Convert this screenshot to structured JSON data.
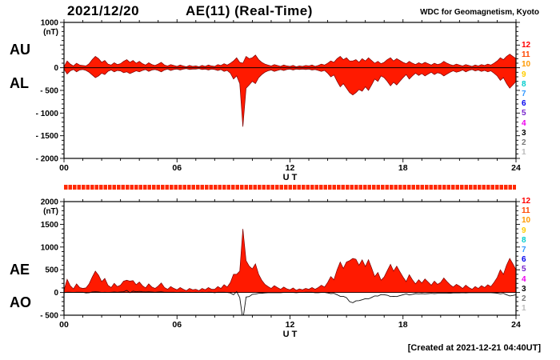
{
  "header": {
    "date": "2021/12/20",
    "title": "AE(11) (Real-Time)",
    "org": "WDC for Geomagnetism, Kyoto"
  },
  "footer": {
    "created": "[Created at 2021-12-21 04:40UT]"
  },
  "legend": {
    "entries": [
      {
        "label": "12",
        "color": "#ff0000"
      },
      {
        "label": "11",
        "color": "#ff4400"
      },
      {
        "label": "10",
        "color": "#ff9900"
      },
      {
        "label": "9",
        "color": "#ffcc00"
      },
      {
        "label": "8",
        "color": "#00cccc"
      },
      {
        "label": "7",
        "color": "#3399ff"
      },
      {
        "label": "6",
        "color": "#0000ee"
      },
      {
        "label": "5",
        "color": "#7722cc"
      },
      {
        "label": "4",
        "color": "#ee00ee"
      },
      {
        "label": "3",
        "color": "#000000"
      },
      {
        "label": "2",
        "color": "#777777"
      },
      {
        "label": "1",
        "color": "#bbbbbb"
      }
    ]
  },
  "availability_bar": {
    "color": "#ff2a00"
  },
  "chart_data": [
    {
      "type": "area",
      "panel": "top",
      "unit_label": "(nT)",
      "xlabel": "U T",
      "ylim": [
        -2000,
        1000
      ],
      "yticks": [
        1000,
        500,
        0,
        -500,
        -1000,
        -1500,
        -2000
      ],
      "ytick_labels": [
        "1000",
        "",
        "0",
        "- 500",
        "- 1000",
        "- 1500",
        "- 2000"
      ],
      "xticks": [
        0,
        6,
        12,
        18,
        24
      ],
      "xtick_labels": [
        "00",
        "06",
        "12",
        "18",
        "24"
      ],
      "x_hours_start": 0,
      "x_hours_end": 24,
      "x_step_minutes": 10,
      "fill_color": "#ff1a00",
      "series": [
        {
          "name": "AU",
          "display": "area",
          "values": [
            20,
            150,
            80,
            40,
            100,
            60,
            50,
            40,
            90,
            180,
            250,
            200,
            120,
            160,
            80,
            60,
            110,
            70,
            90,
            140,
            180,
            120,
            160,
            100,
            140,
            90,
            60,
            110,
            70,
            50,
            80,
            120,
            60,
            40,
            70,
            50,
            30,
            60,
            40,
            20,
            50,
            30,
            40,
            20,
            50,
            30,
            60,
            40,
            30,
            70,
            50,
            90,
            60,
            100,
            150,
            220,
            120,
            100,
            250,
            200,
            220,
            280,
            180,
            120,
            80,
            60,
            40,
            70,
            50,
            30,
            60,
            40,
            30,
            50,
            20,
            40,
            30,
            50,
            40,
            60,
            30,
            50,
            80,
            60,
            100,
            150,
            120,
            200,
            250,
            180,
            220,
            150,
            150,
            180,
            120,
            200,
            150,
            220,
            160,
            100,
            140,
            90,
            120,
            180,
            220,
            150,
            200,
            160,
            120,
            90,
            140,
            100,
            70,
            110,
            80,
            120,
            90,
            60,
            100,
            70,
            90,
            140,
            100,
            70,
            50,
            80,
            60,
            40,
            70,
            50,
            30,
            60,
            40,
            70,
            50,
            80,
            60,
            100,
            150,
            220,
            180,
            250,
            300,
            250,
            200
          ]
        },
        {
          "name": "AL",
          "display": "area",
          "values": [
            -30,
            -140,
            -70,
            -40,
            -90,
            -50,
            -40,
            -60,
            -100,
            -160,
            -220,
            -180,
            -120,
            -150,
            -80,
            -50,
            -90,
            -60,
            -70,
            -110,
            -90,
            -130,
            -100,
            -70,
            -90,
            -60,
            -40,
            -80,
            -50,
            -40,
            -60,
            -90,
            -50,
            -30,
            -60,
            -40,
            -30,
            -50,
            -30,
            -20,
            -40,
            -30,
            -30,
            -20,
            -40,
            -30,
            -50,
            -30,
            -40,
            -60,
            -40,
            -80,
            -60,
            -120,
            -250,
            -180,
            -350,
            -1300,
            -450,
            -380,
            -300,
            -350,
            -220,
            -150,
            -100,
            -70,
            -50,
            -80,
            -60,
            -40,
            -60,
            -40,
            -30,
            -50,
            -30,
            -40,
            -30,
            -40,
            -30,
            -50,
            -40,
            -60,
            -80,
            -60,
            -120,
            -200,
            -160,
            -300,
            -420,
            -350,
            -450,
            -550,
            -600,
            -550,
            -480,
            -520,
            -420,
            -500,
            -380,
            -250,
            -300,
            -180,
            -220,
            -300,
            -400,
            -320,
            -380,
            -300,
            -220,
            -150,
            -250,
            -180,
            -120,
            -170,
            -130,
            -180,
            -140,
            -100,
            -150,
            -110,
            -130,
            -180,
            -140,
            -100,
            -70,
            -100,
            -80,
            -50,
            -90,
            -60,
            -40,
            -70,
            -50,
            -80,
            -60,
            -90,
            -70,
            -120,
            -180,
            -280,
            -220,
            -350,
            -450,
            -380,
            -300
          ]
        }
      ]
    },
    {
      "type": "area",
      "panel": "bottom",
      "unit_label": "(nT)",
      "xlabel": "U T",
      "ylim": [
        -500,
        2000
      ],
      "yticks": [
        2000,
        1500,
        1000,
        500,
        0,
        -500
      ],
      "ytick_labels": [
        "2000",
        "1500",
        "1000",
        "500",
        "0",
        "- 500"
      ],
      "xticks": [
        0,
        6,
        12,
        18,
        24
      ],
      "xtick_labels": [
        "00",
        "06",
        "12",
        "18",
        "24"
      ],
      "x_hours_start": 0,
      "x_hours_end": 24,
      "x_step_minutes": 10,
      "fill_color": "#ff1a00",
      "series": [
        {
          "name": "AE",
          "display": "area",
          "values": [
            50,
            290,
            150,
            80,
            190,
            110,
            90,
            100,
            190,
            340,
            470,
            380,
            240,
            310,
            160,
            110,
            200,
            130,
            160,
            250,
            270,
            250,
            260,
            170,
            230,
            150,
            100,
            190,
            120,
            90,
            140,
            210,
            110,
            70,
            130,
            90,
            60,
            110,
            70,
            40,
            90,
            60,
            70,
            40,
            90,
            60,
            110,
            70,
            70,
            130,
            90,
            170,
            120,
            220,
            400,
            400,
            470,
            1400,
            700,
            580,
            520,
            630,
            400,
            270,
            180,
            130,
            90,
            150,
            110,
            70,
            120,
            80,
            60,
            100,
            50,
            80,
            60,
            90,
            70,
            110,
            70,
            110,
            160,
            120,
            220,
            350,
            280,
            500,
            670,
            530,
            670,
            700,
            750,
            730,
            600,
            720,
            570,
            720,
            540,
            350,
            440,
            270,
            340,
            480,
            620,
            470,
            580,
            460,
            340,
            240,
            390,
            280,
            190,
            280,
            210,
            300,
            230,
            160,
            250,
            180,
            220,
            320,
            240,
            170,
            120,
            180,
            140,
            90,
            160,
            110,
            70,
            130,
            90,
            150,
            110,
            170,
            130,
            220,
            330,
            500,
            400,
            600,
            750,
            630,
            500
          ]
        },
        {
          "name": "AO",
          "display": "line",
          "values": [
            -5,
            5,
            5,
            0,
            5,
            5,
            5,
            -10,
            -5,
            10,
            15,
            10,
            0,
            5,
            0,
            5,
            10,
            5,
            10,
            15,
            45,
            -5,
            30,
            15,
            25,
            15,
            10,
            15,
            10,
            5,
            10,
            15,
            5,
            5,
            5,
            5,
            0,
            5,
            5,
            0,
            5,
            0,
            5,
            0,
            5,
            0,
            5,
            5,
            -5,
            5,
            5,
            5,
            0,
            -10,
            -50,
            20,
            -115,
            -600,
            -100,
            -90,
            -40,
            -35,
            -20,
            -15,
            -10,
            -5,
            -5,
            -5,
            -5,
            -5,
            0,
            0,
            0,
            0,
            -5,
            0,
            0,
            5,
            5,
            5,
            -5,
            -5,
            0,
            0,
            -10,
            -25,
            -20,
            -50,
            -85,
            -85,
            -115,
            -200,
            -225,
            -185,
            -180,
            -160,
            -135,
            -140,
            -110,
            -75,
            -80,
            -45,
            -50,
            -60,
            -90,
            -85,
            -90,
            -70,
            -50,
            -30,
            -55,
            -40,
            -25,
            -30,
            -25,
            -30,
            -25,
            -20,
            -25,
            -20,
            -20,
            -20,
            -20,
            -15,
            -10,
            -10,
            -10,
            -5,
            -10,
            -5,
            -5,
            -5,
            -5,
            -5,
            -5,
            -5,
            -5,
            -10,
            -15,
            -30,
            -20,
            -50,
            -75,
            -65,
            -50
          ]
        }
      ]
    }
  ]
}
